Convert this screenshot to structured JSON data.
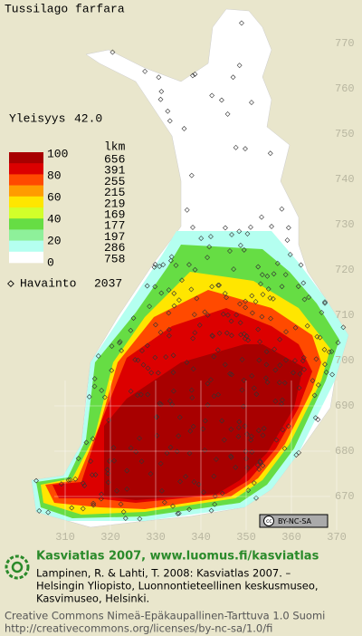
{
  "header": {
    "title": "Tussilago farfara"
  },
  "frequency": {
    "label": "Yleisyys",
    "value": {
      "value": 42,
      "label": "42.0"
    }
  },
  "legend": {
    "count_header": "lkm",
    "scale_ticks": [
      100,
      80,
      60,
      40,
      20,
      0
    ],
    "classes": [
      {
        "color": "#a80000",
        "count": 656
      },
      {
        "color": "#dc0000",
        "count": 391
      },
      {
        "color": "#ff4a00",
        "count": 255
      },
      {
        "color": "#ff9c00",
        "count": 215
      },
      {
        "color": "#ffe600",
        "count": 219
      },
      {
        "color": "#d2ff2a",
        "count": 169
      },
      {
        "color": "#66dd44",
        "count": 177
      },
      {
        "color": "#8ef09a",
        "count": 197
      },
      {
        "color": "#b4fff0",
        "count": 286
      },
      {
        "color": "#ffffff",
        "count": 758
      }
    ],
    "observation_label": "Havainto",
    "observation_count": 2037
  },
  "map": {
    "yticks": [
      670,
      680,
      690,
      700,
      710,
      720,
      730,
      740,
      750,
      760,
      770
    ],
    "xticks": [
      310,
      320,
      330,
      340,
      350,
      360,
      370
    ]
  },
  "license_badge": "BY-NC-SA",
  "footer": {
    "heading": "Kasviatlas 2007, www.luomus.fi/kasviatlas",
    "citation": [
      "Lampinen, R. & Lahti, T. 2008: Kasviatlas 2007. –",
      "Helsingin Yliopisto, Luonnontieteellinen keskusmuseo,",
      "Kasvimuseo, Helsinki."
    ],
    "license": [
      "Creative Commons Nimeä-Epäkaupallinen-Tarttuva 1.0 Suomi",
      "http://creativecommons.org/licenses/by-nc-sa/1.0/fi"
    ]
  }
}
